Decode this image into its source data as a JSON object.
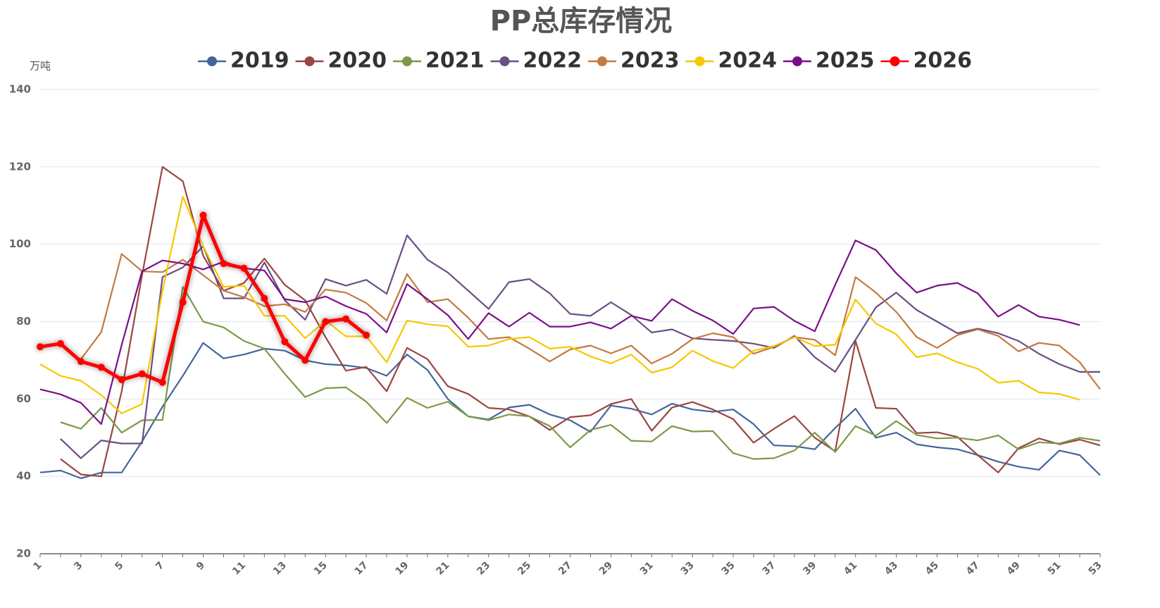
{
  "chart_data": {
    "type": "line",
    "title": "PP总库存情况",
    "y_label": "万吨",
    "categories": [
      "1",
      null,
      "3",
      null,
      "5",
      null,
      "7",
      null,
      "9",
      null,
      "11",
      null,
      "13",
      null,
      "15",
      null,
      "17",
      null,
      "19",
      null,
      "21",
      null,
      "23",
      null,
      "25",
      null,
      "27",
      null,
      "29",
      null,
      "31",
      null,
      "33",
      null,
      "35",
      null,
      "37",
      null,
      "39",
      null,
      "41",
      null,
      "43",
      null,
      "45",
      null,
      "47",
      null,
      "49",
      null,
      "51",
      null,
      "53"
    ],
    "ylim": [
      20,
      140
    ],
    "yticks": [
      20,
      40,
      60,
      80,
      100,
      120,
      140
    ],
    "grid": true,
    "series": [
      {
        "name": "2019",
        "color": "#44659a",
        "values": [
          41,
          41.5,
          39.5,
          41,
          41,
          49,
          58,
          66,
          74.5,
          70.5,
          71.5,
          73,
          72.5,
          70,
          69,
          68.7,
          68,
          66,
          71.5,
          67.5,
          60,
          55.5,
          54.7,
          57.8,
          58.5,
          56,
          54.5,
          51.5,
          58.3,
          57.5,
          56,
          58.8,
          57.3,
          56.7,
          57.3,
          53.5,
          48,
          47.8,
          47,
          52.5,
          57.5,
          50,
          51.3,
          48.3,
          47.5,
          47,
          45.5,
          43.8,
          42.5,
          41.7,
          46.7,
          45.5,
          40.3
        ]
      },
      {
        "name": "2020",
        "color": "#9c4542",
        "values": [
          null,
          44.5,
          40.5,
          40,
          62,
          92,
          120,
          116.3,
          97,
          88,
          90,
          96.3,
          89.5,
          85.5,
          76,
          67.3,
          68.3,
          62,
          73.2,
          70.3,
          63.3,
          61.3,
          57.7,
          57.3,
          55.5,
          52,
          55.3,
          55.8,
          58.7,
          60,
          51.8,
          57.8,
          59.2,
          57.3,
          54.8,
          48.7,
          52.3,
          55.6,
          50,
          46.5,
          75,
          57.7,
          57.5,
          51.2,
          51.4,
          50.2,
          45.5,
          41,
          47.3,
          49.8,
          48.3,
          49.5,
          48
        ]
      },
      {
        "name": "2021",
        "color": "#7a9a47",
        "values": [
          null,
          54,
          52.3,
          57.7,
          51.3,
          54.5,
          54.6,
          89,
          80,
          78.5,
          75,
          73,
          66.5,
          60.5,
          62.8,
          63,
          59.3,
          53.8,
          60.3,
          57.7,
          59.3,
          55.5,
          54.5,
          56,
          55.5,
          53,
          47.5,
          52,
          53.3,
          49.2,
          49,
          53,
          51.6,
          51.7,
          46,
          44.5,
          44.7,
          46.7,
          51.3,
          46.3,
          53,
          50.5,
          54.3,
          50.7,
          49.8,
          50,
          49.3,
          50.6,
          47,
          48.8,
          48.5,
          50,
          49.2
        ]
      },
      {
        "name": "2022",
        "color": "#6a4e84",
        "values": [
          null,
          49.7,
          44.7,
          49.3,
          48.5,
          48.5,
          91.5,
          94,
          99.5,
          86,
          86,
          95.3,
          85.5,
          80.5,
          91,
          89.3,
          90.8,
          87.2,
          102.3,
          96,
          92.7,
          88,
          83.3,
          90.2,
          91,
          87.3,
          82,
          81.5,
          85,
          81.7,
          77.2,
          78,
          75.7,
          75.3,
          75,
          74.3,
          73.2,
          76.3,
          70.8,
          67,
          75.3,
          83.7,
          87.5,
          83,
          80,
          77,
          78.2,
          77,
          75,
          71.7,
          69,
          67,
          67
        ]
      },
      {
        "name": "2023",
        "color": "#c47a3e",
        "values": [
          null,
          null,
          70.3,
          77.3,
          97.5,
          93,
          92.8,
          96,
          92,
          88,
          86.3,
          84,
          84.5,
          82.5,
          88.3,
          87.5,
          84.8,
          80.3,
          92.3,
          85,
          85.8,
          81,
          75.5,
          76,
          73,
          69.7,
          72.8,
          73.8,
          71.8,
          73.8,
          69.2,
          71.7,
          75.5,
          77,
          76,
          71.7,
          73.5,
          76,
          75.3,
          71.3,
          91.5,
          87.5,
          82.5,
          76,
          73.2,
          76.5,
          78,
          76.3,
          72.3,
          74.5,
          73.8,
          69.5,
          62.5
        ]
      },
      {
        "name": "2024",
        "color": "#f5c800",
        "values": [
          69,
          66,
          64.7,
          61,
          56.3,
          58.7,
          88,
          112.3,
          99.5,
          89,
          89.3,
          81.5,
          81.5,
          75.7,
          80.3,
          76.2,
          76.2,
          69.5,
          80.3,
          79.3,
          78.8,
          73.5,
          73.8,
          75.5,
          76,
          73,
          73.5,
          71,
          69.2,
          71.5,
          66.8,
          68.2,
          72.5,
          69.8,
          68,
          72.5,
          73.7,
          76,
          73.7,
          74,
          85.7,
          79.5,
          76.7,
          70.8,
          71.8,
          69.5,
          67.8,
          64.2,
          64.7,
          61.7,
          61.3,
          59.8,
          null
        ]
      },
      {
        "name": "2025",
        "color": "#7b0f8a",
        "values": [
          62.5,
          61.2,
          59,
          53.5,
          74,
          93,
          95.8,
          95,
          93.5,
          95.5,
          93.8,
          93.2,
          85.8,
          85,
          86.5,
          84,
          82,
          77.2,
          89.7,
          85.8,
          81.7,
          75.5,
          82.2,
          78.7,
          82.3,
          78.7,
          78.7,
          79.8,
          78.2,
          81.5,
          80.2,
          85.8,
          82.8,
          80.3,
          76.8,
          83.4,
          83.8,
          80.2,
          77.5,
          89.5,
          101,
          98.5,
          92.5,
          87.5,
          89.3,
          90,
          87.3,
          81.3,
          84.3,
          81.3,
          80.5,
          79.1,
          null
        ]
      },
      {
        "name": "2026",
        "color": "#ff0000",
        "emphasis": true,
        "values": [
          73.5,
          74.3,
          69.7,
          68.2,
          65,
          66.5,
          64.3,
          85,
          107.5,
          95,
          93.8,
          86,
          74.8,
          70,
          80,
          80.7,
          76.5,
          null,
          null,
          null,
          null,
          null,
          null,
          null,
          null,
          null,
          null,
          null,
          null,
          null,
          null,
          null,
          null,
          null,
          null,
          null,
          null,
          null,
          null,
          null,
          null,
          null,
          null,
          null,
          null,
          null,
          null,
          null,
          null,
          null,
          null,
          null,
          null
        ]
      }
    ]
  }
}
